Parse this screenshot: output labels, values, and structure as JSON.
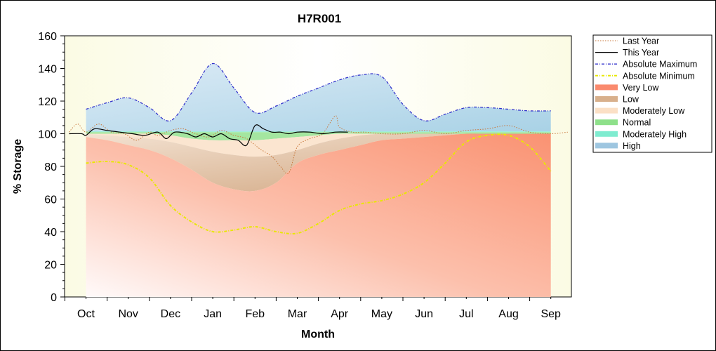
{
  "chart_data": {
    "type": "area",
    "title": "H7R001",
    "xlabel": "Month",
    "ylabel": "% Storage",
    "ylim": [
      0,
      160
    ],
    "yticks": [
      0,
      20,
      40,
      60,
      80,
      100,
      120,
      140,
      160
    ],
    "categories": [
      "Oct",
      "Nov",
      "Dec",
      "Jan",
      "Feb",
      "Mar",
      "Apr",
      "May",
      "Jun",
      "Jul",
      "Aug",
      "Sep"
    ],
    "legend_position": "right",
    "grid": false,
    "bands": [
      {
        "name": "Very Low",
        "color": "#fb9c80",
        "x": [
          1,
          1.5,
          2,
          2.5,
          3,
          3.5,
          4,
          4.5,
          5,
          5.5,
          6,
          6.5,
          7,
          7.5,
          8,
          8.5,
          9,
          9.5,
          10,
          10.5,
          11,
          11.5,
          12
        ],
        "lower": [
          0,
          0,
          0,
          0,
          0,
          0,
          0,
          0,
          0,
          0,
          0,
          0,
          0,
          0,
          0,
          0,
          0,
          0,
          0,
          0,
          0,
          0,
          0
        ],
        "upper": [
          98,
          96,
          93,
          90,
          85,
          78,
          70,
          66,
          65,
          70,
          82,
          87,
          90,
          93,
          96,
          97,
          98,
          99,
          100,
          100,
          100,
          100,
          100
        ]
      },
      {
        "name": "Low",
        "color": "#ddbb99",
        "x": [
          1,
          1.5,
          2,
          2.5,
          3,
          3.5,
          4,
          4.5,
          5,
          5.5,
          6,
          6.5,
          7,
          7.5,
          8,
          8.5,
          9,
          9.5,
          10,
          10.5,
          11,
          11.5,
          12
        ],
        "lower": [
          98,
          96,
          93,
          90,
          85,
          78,
          70,
          66,
          65,
          70,
          82,
          87,
          90,
          93,
          96,
          97,
          98,
          99,
          100,
          100,
          100,
          100,
          100
        ],
        "upper": [
          100,
          99,
          98,
          97,
          95,
          92,
          89,
          87,
          86,
          87,
          90,
          94,
          97,
          99,
          100,
          100,
          100,
          100,
          100,
          100,
          100,
          100,
          100
        ]
      },
      {
        "name": "Moderately Low",
        "color": "#fbe3cc",
        "x": [
          1,
          1.5,
          2,
          2.5,
          3,
          3.5,
          4,
          4.5,
          5,
          5.5,
          6,
          6.5,
          7,
          7.5,
          8,
          8.5,
          9,
          9.5,
          10,
          10.5,
          11,
          11.5,
          12
        ],
        "lower": [
          100,
          99,
          98,
          97,
          95,
          92,
          89,
          87,
          86,
          87,
          90,
          94,
          97,
          99,
          100,
          100,
          100,
          100,
          100,
          100,
          100,
          100,
          100
        ],
        "upper": [
          100,
          100,
          100,
          100,
          99,
          97,
          96,
          96,
          96,
          97,
          98,
          99,
          100,
          100,
          100,
          100,
          100,
          100,
          100,
          100,
          100,
          100,
          100
        ]
      },
      {
        "name": "Normal",
        "color": "#a8e8a0",
        "x": [
          1,
          1.5,
          2,
          2.5,
          3,
          3.5,
          4,
          4.5,
          5,
          5.5,
          6,
          6.5,
          7,
          7.5,
          8,
          8.5,
          9,
          9.5,
          10,
          10.5,
          11,
          11.5,
          12
        ],
        "lower": [
          100,
          100,
          100,
          100,
          99,
          97,
          96,
          96,
          96,
          97,
          98,
          99,
          100,
          100,
          100,
          100,
          100,
          100,
          100,
          100,
          100,
          100,
          100
        ],
        "upper": [
          101,
          101,
          101,
          101,
          101,
          101,
          101,
          101,
          101,
          101,
          101,
          101,
          101,
          101,
          101,
          101,
          101,
          101,
          101,
          101,
          101,
          101,
          101
        ]
      },
      {
        "name": "Moderately High",
        "color": "#9ef0d8",
        "x": [
          1,
          1.5,
          2,
          2.5,
          3,
          3.5,
          4,
          4.5,
          5,
          5.5,
          6,
          6.5,
          7,
          7.5,
          8,
          8.5,
          9,
          9.5,
          10,
          10.5,
          11,
          11.5,
          12
        ],
        "lower": [
          101,
          101,
          101,
          101,
          101,
          101,
          101,
          101,
          101,
          101,
          101,
          101,
          101,
          101,
          101,
          101,
          101,
          101,
          101,
          101,
          101,
          101,
          101
        ],
        "upper": [
          101.5,
          101.5,
          101.5,
          101.5,
          101.5,
          101.5,
          101.5,
          101.5,
          101.5,
          101.5,
          101.5,
          101.5,
          101.5,
          101.5,
          101.5,
          101.5,
          101.5,
          101.5,
          101.5,
          101.5,
          101.5,
          101.5,
          101.5
        ]
      },
      {
        "name": "High",
        "color": "#b4d8ea",
        "x": [
          1,
          1.5,
          2,
          2.5,
          3,
          3.5,
          4,
          4.5,
          5,
          5.5,
          6,
          6.5,
          7,
          7.5,
          8,
          8.5,
          9,
          9.5,
          10,
          10.5,
          11,
          11.5,
          12
        ],
        "lower": [
          101.5,
          101.5,
          101.5,
          101.5,
          101.5,
          101.5,
          101.5,
          101.5,
          101.5,
          101.5,
          101.5,
          101.5,
          101.5,
          101.5,
          101.5,
          101.5,
          101.5,
          101.5,
          101.5,
          101.5,
          101.5,
          101.5,
          101.5
        ],
        "upper": [
          115,
          119,
          122,
          116,
          108,
          125,
          143,
          128,
          113,
          117,
          123,
          128,
          133,
          136,
          135,
          118,
          108,
          112,
          116,
          116,
          115,
          114,
          114
        ]
      }
    ],
    "series": [
      {
        "name": "Last Year",
        "color": "#c8783c",
        "style": "dotted",
        "x": [
          0.6,
          0.8,
          1.0,
          1.3,
          1.6,
          1.9,
          2.2,
          2.5,
          2.7,
          3.0,
          3.3,
          3.6,
          3.9,
          4.2,
          4.5,
          4.8,
          5.1,
          5.4,
          5.6,
          5.8,
          6.0,
          6.3,
          6.6,
          6.9,
          7.0,
          7.3,
          7.6,
          8,
          8.5,
          9,
          9.5,
          10,
          10.5,
          11,
          11.5,
          12,
          12.4
        ],
        "y": [
          101,
          106,
          101,
          106,
          101,
          100,
          96,
          101,
          99,
          102,
          103,
          100,
          98,
          102,
          99,
          97,
          91,
          86,
          80,
          76,
          92,
          97,
          100,
          111,
          104,
          101,
          101,
          100,
          100,
          102,
          100,
          102,
          103,
          105,
          101,
          100,
          101
        ]
      },
      {
        "name": "This Year",
        "color": "#000000",
        "style": "solid",
        "x": [
          0.6,
          0.9,
          1.0,
          1.2,
          1.5,
          1.8,
          2.1,
          2.4,
          2.7,
          2.9,
          3.1,
          3.4,
          3.6,
          3.8,
          4.0,
          4.2,
          4.4,
          4.6,
          4.8,
          5.0,
          5.2,
          5.4,
          5.6,
          5.8,
          6.0,
          6.3,
          6.6,
          6.9,
          7.2
        ],
        "y": [
          100,
          100,
          99,
          103,
          102,
          101,
          100,
          99,
          101,
          97,
          101,
          100,
          98,
          100,
          98,
          100,
          97,
          96,
          93,
          105,
          103,
          101,
          101,
          100,
          101,
          101,
          100,
          101,
          101
        ]
      },
      {
        "name": "Absolute Maximum",
        "color": "#3333cc",
        "style": "dashdot",
        "x": [
          1,
          1.5,
          2,
          2.5,
          3,
          3.5,
          4,
          4.5,
          5,
          5.5,
          6,
          6.5,
          7,
          7.5,
          8,
          8.5,
          9,
          9.5,
          10,
          10.5,
          11,
          11.5,
          12
        ],
        "y": [
          115,
          119,
          122,
          116,
          108,
          125,
          143,
          128,
          113,
          117,
          123,
          128,
          133,
          136,
          135,
          118,
          108,
          112,
          116,
          116,
          115,
          114,
          114
        ]
      },
      {
        "name": "Absolute Minimum",
        "color": "#e8e800",
        "style": "dashdot",
        "x": [
          1,
          1.5,
          2,
          2.5,
          3,
          3.5,
          4,
          4.5,
          5,
          5.5,
          6,
          6.5,
          7,
          7.5,
          8,
          8.5,
          9,
          9.5,
          10,
          10.5,
          11,
          11.5,
          12
        ],
        "y": [
          82,
          83,
          81,
          73,
          56,
          46,
          40,
          41,
          43,
          40,
          39,
          45,
          53,
          57,
          59,
          63,
          70,
          82,
          95,
          99,
          99,
          92,
          77
        ]
      }
    ],
    "legend": [
      "Last Year",
      "This Year",
      "Absolute Maximum",
      "Absolute Minimum",
      "Very Low",
      "Low",
      "Moderately Low",
      "Normal",
      "Moderately High",
      "High"
    ]
  }
}
